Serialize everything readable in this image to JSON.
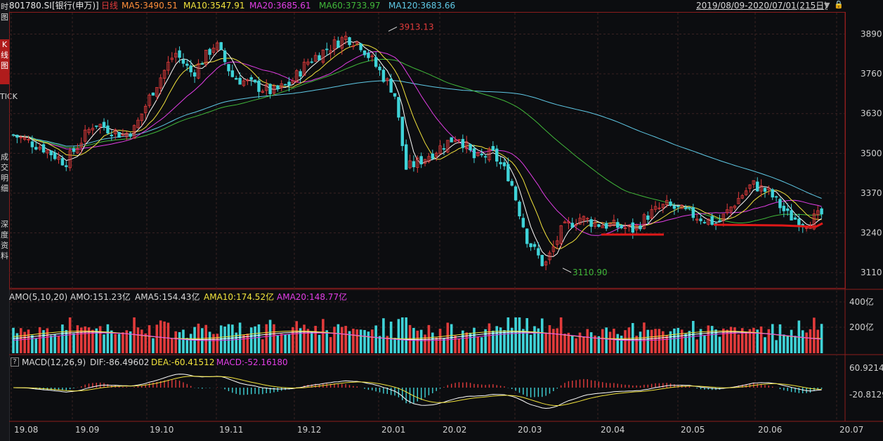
{
  "sidebar": {
    "items": [
      {
        "label": "时图",
        "active": false
      },
      {
        "label": "K线图",
        "active": true
      },
      {
        "label": "TICK",
        "active": false
      },
      {
        "label": "成交明细",
        "active": false
      },
      {
        "label": "深度资料",
        "active": false
      }
    ]
  },
  "header": {
    "code": "801780.SI",
    "name": "[银行(申万)]",
    "period": "日线",
    "ma5": "MA5:3490.51",
    "ma10": "MA10:3547.91",
    "ma20": "MA20:3685.61",
    "ma60": "MA60:3733.97",
    "ma120": "MA120:3683.66",
    "range": "2019/08/09-2020/07/01(215日)"
  },
  "price_axis": [
    "3890",
    "3760",
    "3630",
    "3500",
    "3370",
    "3240",
    "3110"
  ],
  "annotations": {
    "high": "3913.13",
    "low": "3110.90"
  },
  "amo": {
    "title": "AMO(5,10,20)",
    "amo": "AMO:151.23亿",
    "ama5": "AMA5:154.43亿",
    "ama10": "AMA10:174.52亿",
    "ama20": "AMA20:148.77亿",
    "axis": [
      "400亿",
      "200亿"
    ]
  },
  "macd": {
    "help": "?",
    "title": "MACD(12,26,9)",
    "dif": "DIF:-86.49602",
    "dea": "DEA:-60.41512",
    "macd": "MACD:-52.16180",
    "axis": [
      "60.92143",
      "-20.8129"
    ]
  },
  "date_axis": [
    "19.08",
    "19.09",
    "19.10",
    "19.11",
    "19.12",
    "20.01",
    "20.02",
    "20.03",
    "20.04",
    "20.05",
    "20.06",
    "20.07"
  ],
  "colors": {
    "up": "#e23b3b",
    "down": "#3fd3d8",
    "ma5": "#ffffff",
    "ma10": "#f2e33c",
    "ma20": "#e23ee6",
    "ma60": "#41b83a",
    "ma120": "#5fc9e6",
    "support": "#e01818"
  },
  "chart_data": {
    "type": "candlestick",
    "x_range": [
      "2019/08/09",
      "2020/07/01"
    ],
    "n_days": 215,
    "ylim": [
      3060,
      3960
    ],
    "key_levels": {
      "high": 3913.13,
      "low": 3110.9
    },
    "ma_last": {
      "MA5": 3490.51,
      "MA10": 3547.91,
      "MA20": 3685.61,
      "MA60": 3733.97,
      "MA120": 3683.66
    },
    "amo_last": {
      "AMO": 151.23,
      "AMA5": 154.43,
      "AMA10": 174.52,
      "AMA20": 148.77
    },
    "macd_last": {
      "DIF": -86.49602,
      "DEA": -60.41512,
      "MACD": -52.1618
    },
    "trend_anchors": [
      [
        0,
        3560
      ],
      [
        10,
        3520
      ],
      [
        18,
        3470
      ],
      [
        28,
        3600
      ],
      [
        38,
        3560
      ],
      [
        42,
        3580
      ],
      [
        48,
        3700
      ],
      [
        56,
        3830
      ],
      [
        62,
        3760
      ],
      [
        70,
        3860
      ],
      [
        76,
        3750
      ],
      [
        84,
        3720
      ],
      [
        90,
        3700
      ],
      [
        96,
        3730
      ],
      [
        102,
        3800
      ],
      [
        110,
        3850
      ],
      [
        115,
        3880
      ],
      [
        120,
        3860
      ],
      [
        126,
        3780
      ],
      [
        132,
        3700
      ],
      [
        136,
        3450
      ],
      [
        140,
        3470
      ],
      [
        148,
        3520
      ],
      [
        154,
        3560
      ],
      [
        160,
        3480
      ],
      [
        166,
        3500
      ],
      [
        172,
        3420
      ],
      [
        178,
        3220
      ],
      [
        184,
        3130
      ],
      [
        190,
        3250
      ],
      [
        196,
        3290
      ],
      [
        202,
        3270
      ],
      [
        210,
        3260
      ],
      [
        215,
        3250
      ],
      [
        220,
        3300
      ],
      [
        226,
        3330
      ],
      [
        232,
        3310
      ],
      [
        238,
        3290
      ],
      [
        244,
        3270
      ],
      [
        250,
        3340
      ],
      [
        256,
        3400
      ],
      [
        262,
        3370
      ],
      [
        268,
        3300
      ],
      [
        274,
        3270
      ],
      [
        280,
        3300
      ]
    ]
  }
}
